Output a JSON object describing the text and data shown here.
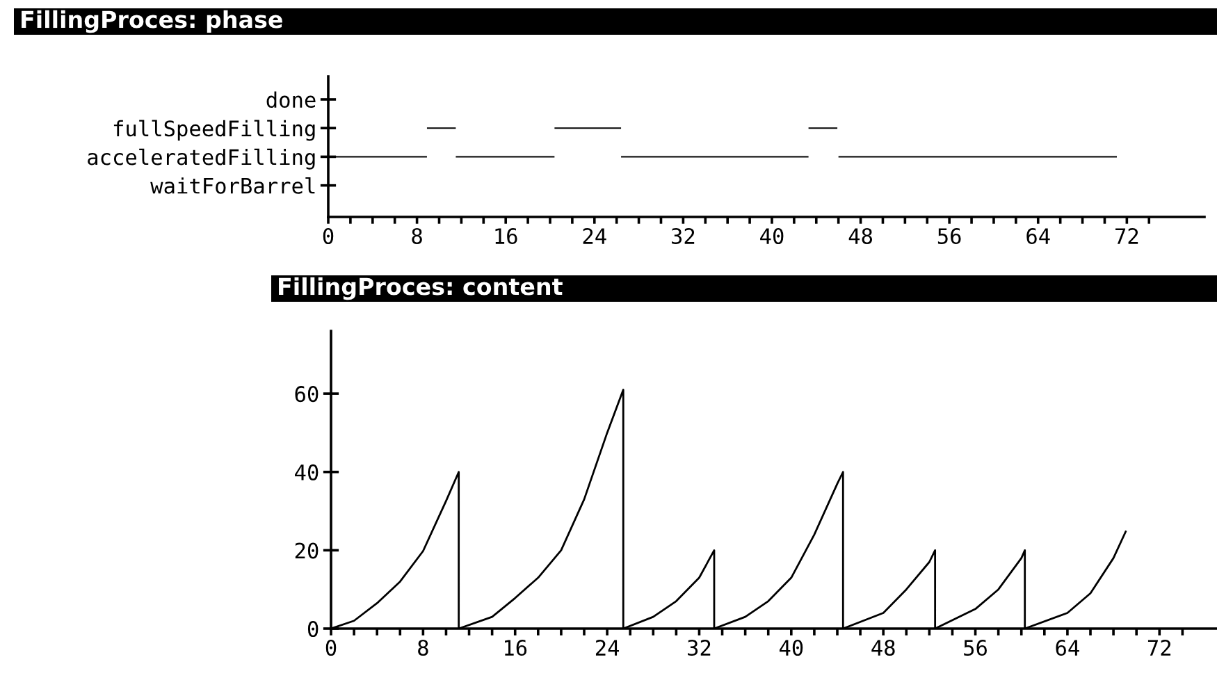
{
  "chart_data": [
    {
      "type": "bar",
      "orientation": "horizontal",
      "title": "FillingProces: phase",
      "xlim": [
        0,
        79
      ],
      "xticks": [
        0,
        {
          "value": 2,
          "label": null
        },
        {
          "value": 4,
          "label": null
        },
        {
          "value": 6,
          "label": null
        },
        8,
        {
          "value": 10,
          "label": null
        },
        {
          "value": 12,
          "label": null
        },
        {
          "value": 14,
          "label": null
        },
        16,
        {
          "value": 18,
          "label": null
        },
        {
          "value": 20,
          "label": null
        },
        {
          "value": 22,
          "label": null
        },
        24,
        {
          "value": 26,
          "label": null
        },
        {
          "value": 28,
          "label": null
        },
        {
          "value": 30,
          "label": null
        },
        32,
        {
          "value": 34,
          "label": null
        },
        {
          "value": 36,
          "label": null
        },
        {
          "value": 38,
          "label": null
        },
        40,
        {
          "value": 42,
          "label": null
        },
        {
          "value": 44,
          "label": null
        },
        {
          "value": 46,
          "label": null
        },
        48,
        {
          "value": 50,
          "label": null
        },
        {
          "value": 52,
          "label": null
        },
        {
          "value": 54,
          "label": null
        },
        56,
        {
          "value": 58,
          "label": null
        },
        {
          "value": 60,
          "label": null
        },
        {
          "value": 62,
          "label": null
        },
        64,
        {
          "value": 66,
          "label": null
        },
        {
          "value": 68,
          "label": null
        },
        {
          "value": 70,
          "label": null
        },
        72,
        {
          "value": 74,
          "label": null
        }
      ],
      "categories": [
        "done",
        "fullSpeedFilling",
        "acceleratedFilling",
        "waitForBarrel"
      ],
      "series": [
        {
          "color": "#000000",
          "base": [
            null,
            8.9,
            0,
            null
          ],
          "values": [
            null,
            2.6,
            8.9,
            null
          ]
        },
        {
          "color": "#000000",
          "base": [
            null,
            20.4,
            11.5,
            null
          ],
          "values": [
            null,
            6.0,
            8.9,
            null
          ]
        },
        {
          "color": "#000000",
          "base": [
            null,
            43.3,
            26.4,
            null
          ],
          "values": [
            null,
            2.6,
            16.9,
            null
          ]
        },
        {
          "color": "#000000",
          "base": [
            null,
            null,
            46.0,
            null
          ],
          "values": [
            null,
            null,
            25.1,
            null
          ]
        }
      ]
    },
    {
      "type": "line",
      "title": "FillingProces: content",
      "xlim": [
        0,
        77
      ],
      "ylim": [
        0,
        76
      ],
      "xticks": [
        0,
        {
          "value": 2,
          "label": null
        },
        {
          "value": 4,
          "label": null
        },
        {
          "value": 6,
          "label": null
        },
        8,
        {
          "value": 10,
          "label": null
        },
        {
          "value": 12,
          "label": null
        },
        {
          "value": 14,
          "label": null
        },
        16,
        {
          "value": 18,
          "label": null
        },
        {
          "value": 20,
          "label": null
        },
        {
          "value": 22,
          "label": null
        },
        24,
        {
          "value": 26,
          "label": null
        },
        {
          "value": 28,
          "label": null
        },
        {
          "value": 30,
          "label": null
        },
        32,
        {
          "value": 34,
          "label": null
        },
        {
          "value": 36,
          "label": null
        },
        {
          "value": 38,
          "label": null
        },
        40,
        {
          "value": 42,
          "label": null
        },
        {
          "value": 44,
          "label": null
        },
        {
          "value": 46,
          "label": null
        },
        48,
        {
          "value": 50,
          "label": null
        },
        {
          "value": 52,
          "label": null
        },
        {
          "value": 54,
          "label": null
        },
        56,
        {
          "value": 58,
          "label": null
        },
        {
          "value": 60,
          "label": null
        },
        {
          "value": 62,
          "label": null
        },
        64,
        {
          "value": 66,
          "label": null
        },
        {
          "value": 68,
          "label": null
        },
        {
          "value": 70,
          "label": null
        },
        72,
        {
          "value": 74,
          "label": null
        }
      ],
      "yticks": [
        0,
        20,
        40,
        60
      ],
      "series": [
        {
          "color": "#000000",
          "x": [
            0,
            2,
            4,
            6,
            8,
            10,
            11.1,
            11.1,
            14,
            16,
            18,
            20,
            22,
            24,
            25.4,
            25.4,
            28,
            30,
            32,
            33.3,
            33.3,
            36,
            38,
            40,
            42,
            44,
            44.5,
            44.5,
            48,
            50,
            52,
            52.5,
            52.5,
            56,
            58,
            60,
            60.3,
            60.3,
            64,
            66,
            68,
            69.1
          ],
          "values": [
            0,
            2,
            6.5,
            12,
            19.8,
            32.6,
            40,
            0,
            3,
            7.8,
            13,
            20,
            33,
            50,
            61,
            0,
            3,
            7,
            13,
            20,
            0,
            3,
            7,
            13,
            24,
            37,
            40,
            0,
            4,
            10,
            17,
            20,
            0,
            5,
            10,
            18,
            20,
            0,
            4,
            9,
            18,
            25
          ]
        }
      ]
    }
  ]
}
